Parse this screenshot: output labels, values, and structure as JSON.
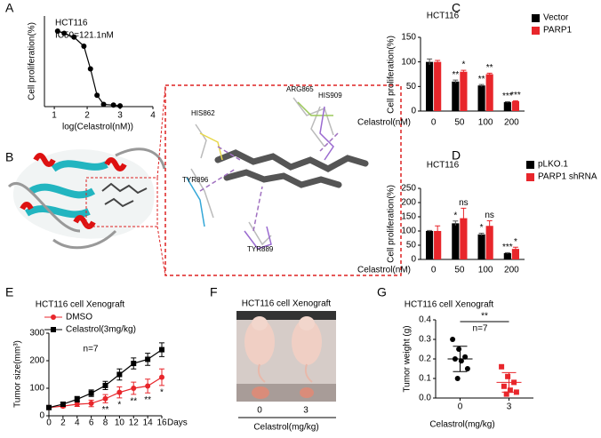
{
  "chart_data": [
    {
      "type": "line",
      "title": "HCT116",
      "subtitle": "IC50=121.1nM",
      "x_label": "log(Celastrol(nM))",
      "y_label": "Cell proliferation(%)",
      "xlim": [
        0.7,
        4
      ],
      "xticks": [
        1,
        2,
        3,
        4
      ],
      "ylim": [
        0,
        120
      ],
      "series": [
        {
          "color": "#000000",
          "marker": "circle",
          "x": [
            1.1,
            1.3,
            1.6,
            1.9,
            2.1,
            2.3,
            2.5,
            2.8,
            3.0
          ],
          "values": [
            100,
            97,
            92,
            80,
            50,
            15,
            3,
            2,
            1
          ]
        }
      ]
    },
    {
      "type": "bar",
      "title": "HCT116",
      "x_label": "Celastrol(nM)",
      "y_label": "Cell proliferation(%)",
      "categories": [
        "0",
        "50",
        "100",
        "200"
      ],
      "ylim": [
        0,
        150
      ],
      "yticks": [
        0,
        50,
        100,
        150
      ],
      "series": [
        {
          "name": "Vector",
          "color": "#000000",
          "values": [
            100,
            60,
            52,
            18
          ],
          "errors": [
            6,
            3,
            2,
            1
          ]
        },
        {
          "name": "PARP1",
          "color": "#e8262b",
          "values": [
            100,
            80,
            75,
            20
          ],
          "errors": [
            3,
            3,
            2,
            1
          ]
        }
      ],
      "annotations": [
        {
          "index": 1,
          "series": 0,
          "text": "**"
        },
        {
          "index": 1,
          "series": 1,
          "text": "*"
        },
        {
          "index": 2,
          "series": 0,
          "text": "**"
        },
        {
          "index": 2,
          "series": 1,
          "text": "**"
        },
        {
          "index": 3,
          "series": 0,
          "text": "***"
        },
        {
          "index": 3,
          "series": 1,
          "text": "***"
        }
      ]
    },
    {
      "type": "bar",
      "title": "HCT116",
      "x_label": "Celastrol(nM)",
      "y_label": "Cell proliferation(%)",
      "categories": [
        "0",
        "50",
        "100",
        "200"
      ],
      "ylim": [
        0,
        250
      ],
      "yticks": [
        0,
        50,
        100,
        150,
        200,
        250
      ],
      "series": [
        {
          "name": "pLKO.1",
          "color": "#000000",
          "values": [
            100,
            127,
            88,
            22
          ],
          "errors": [
            2,
            8,
            4,
            2
          ]
        },
        {
          "name": "PARP1 shRNA",
          "color": "#e8262b",
          "values": [
            100,
            145,
            118,
            37
          ],
          "errors": [
            18,
            35,
            18,
            6
          ]
        }
      ],
      "annotations": [
        {
          "index": 1,
          "series": 0,
          "text": "*"
        },
        {
          "index": 1,
          "series": 1,
          "text": "ns"
        },
        {
          "index": 2,
          "series": 0,
          "text": "*"
        },
        {
          "index": 2,
          "series": 1,
          "text": "ns"
        },
        {
          "index": 3,
          "series": 0,
          "text": "***"
        },
        {
          "index": 3,
          "series": 1,
          "text": "*"
        }
      ]
    },
    {
      "type": "line",
      "title": "HCT116 cell Xenograft",
      "x_label": "Days",
      "y_label": "Tumor size(mm³)",
      "note": "n=7",
      "x": [
        0,
        2,
        4,
        6,
        8,
        10,
        12,
        14,
        16
      ],
      "xlim": [
        0,
        16
      ],
      "xticks": [
        0,
        2,
        4,
        6,
        8,
        10,
        12,
        14,
        16
      ],
      "ylim": [
        0,
        300
      ],
      "yticks": [
        0,
        100,
        200,
        300
      ],
      "series": [
        {
          "name": "DMSO",
          "color": "#e8262b",
          "marker": "circle",
          "values": [
            30,
            35,
            42,
            45,
            62,
            85,
            100,
            108,
            140
          ],
          "errors": [
            5,
            5,
            8,
            12,
            15,
            20,
            22,
            25,
            30
          ]
        },
        {
          "name": "Celastrol(3mg/kg)",
          "color": "#000000",
          "marker": "square",
          "values": [
            30,
            42,
            60,
            82,
            110,
            150,
            190,
            205,
            240
          ],
          "errors": [
            5,
            8,
            10,
            12,
            15,
            20,
            20,
            22,
            25
          ]
        }
      ],
      "annotations": [
        {
          "x": 8,
          "text": "**"
        },
        {
          "x": 10,
          "text": "*"
        },
        {
          "x": 12,
          "text": "**"
        },
        {
          "x": 14,
          "text": "**"
        },
        {
          "x": 16,
          "text": "*"
        }
      ]
    },
    {
      "type": "strip",
      "title": "HCT116 cell Xenograft",
      "x_label": "Celastrol(mg/kg)",
      "y_label": "Tumor weight (g)",
      "note": "n=7",
      "categories": [
        "0",
        "3"
      ],
      "ylim": [
        0,
        0.4
      ],
      "yticks": [
        {
          "value": 0,
          "label": "0.0"
        },
        {
          "value": 0.1,
          "label": "0.1"
        },
        {
          "value": 0.2,
          "label": "0.2"
        },
        {
          "value": 0.3,
          "label": "0.3"
        },
        {
          "value": 0.4,
          "label": "0.4"
        }
      ],
      "series": [
        {
          "color": "#000000",
          "marker": "circle",
          "values": [
            0.3,
            0.25,
            0.21,
            0.2,
            0.19,
            0.15,
            0.1
          ],
          "mean": 0.2,
          "error": 0.065
        },
        {
          "color": "#e8262b",
          "marker": "square",
          "values": [
            0.16,
            0.11,
            0.08,
            0.06,
            0.04,
            0.03,
            0.02
          ],
          "mean": 0.08,
          "error": 0.05
        }
      ],
      "annotations": [
        {
          "text": "**"
        }
      ]
    }
  ],
  "figure": {
    "panel_labels": [
      "A",
      "B",
      "C",
      "D",
      "E",
      "F",
      "G"
    ],
    "docking_residues": [
      "ARG865",
      "HIS909",
      "HIS862",
      "TYR896",
      "TYR889"
    ],
    "xenograft": {
      "title": "HCT116 cell Xenograft",
      "doses": [
        "0",
        "3"
      ],
      "x_label": "Celastrol(mg/kg)"
    }
  }
}
